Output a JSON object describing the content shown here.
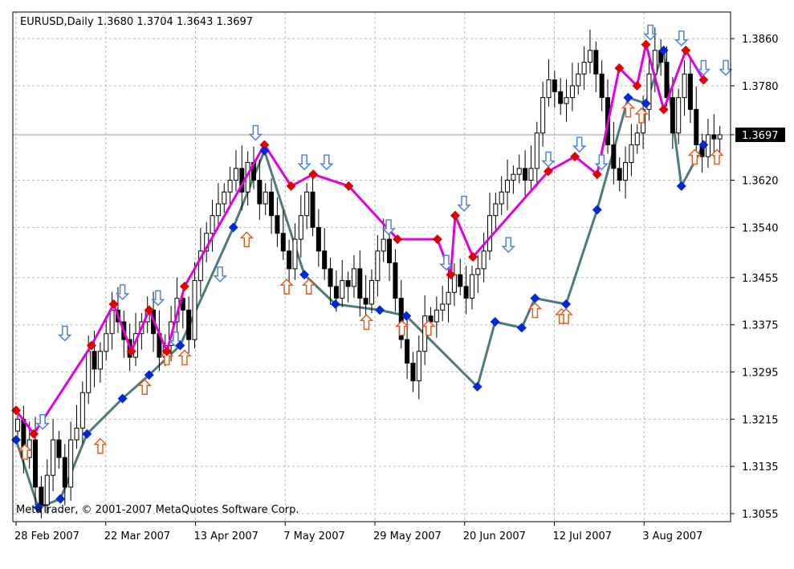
{
  "chart_data": {
    "type": "candlestick",
    "header": "EURUSD,Daily  1.3680 1.3704 1.3643 1.3697",
    "watermark": "MetaTrader, © 2001-2007 MetaQuotes Software Corp.",
    "current_price": "1.3697",
    "ylim": [
      1.3055,
      1.3905
    ],
    "grid": true,
    "y_ticks": [
      "1.3860",
      "1.3780",
      "1.3697",
      "1.3620",
      "1.3540",
      "1.3455",
      "1.3375",
      "1.3295",
      "1.3215",
      "1.3135",
      "1.3055"
    ],
    "y_tick_values": [
      1.386,
      1.378,
      1.3697,
      1.362,
      1.354,
      1.3455,
      1.3375,
      1.3295,
      1.3215,
      1.3135,
      1.3055
    ],
    "x_ticks": [
      "28 Feb 2007",
      "22 Mar 2007",
      "13 Apr 2007",
      "7 May 2007",
      "29 May 2007",
      "20 Jun 2007",
      "12 Jul 2007",
      "3 Aug 2007"
    ],
    "x_tick_bar_index": [
      0,
      16,
      32,
      48,
      64,
      80,
      96,
      112
    ],
    "bar_count": 120,
    "closes": [
      1.3215,
      1.315,
      1.318,
      1.31,
      1.307,
      1.312,
      1.318,
      1.315,
      1.31,
      1.318,
      1.32,
      1.326,
      1.333,
      1.33,
      1.333,
      1.336,
      1.34,
      1.338,
      1.335,
      1.332,
      1.336,
      1.338,
      1.34,
      1.336,
      1.332,
      1.334,
      1.338,
      1.342,
      1.34,
      1.335,
      1.345,
      1.35,
      1.353,
      1.356,
      1.358,
      1.36,
      1.362,
      1.364,
      1.36,
      1.365,
      1.362,
      1.358,
      1.36,
      1.356,
      1.353,
      1.35,
      1.347,
      1.352,
      1.356,
      1.36,
      1.354,
      1.35,
      1.347,
      1.344,
      1.342,
      1.345,
      1.344,
      1.347,
      1.342,
      1.341,
      1.345,
      1.35,
      1.352,
      1.348,
      1.342,
      1.335,
      1.331,
      1.328,
      1.333,
      1.339,
      1.338,
      1.34,
      1.341,
      1.343,
      1.346,
      1.344,
      1.342,
      1.346,
      1.347,
      1.35,
      1.356,
      1.358,
      1.36,
      1.362,
      1.363,
      1.364,
      1.362,
      1.364,
      1.37,
      1.376,
      1.379,
      1.377,
      1.375,
      1.376,
      1.378,
      1.38,
      1.382,
      1.384,
      1.38,
      1.376,
      1.368,
      1.364,
      1.362,
      1.365,
      1.368,
      1.37,
      1.374,
      1.38,
      1.384,
      1.382,
      1.376,
      1.37,
      1.376,
      1.38,
      1.374,
      1.368,
      1.366,
      1.3697,
      1.369,
      1.3697
    ],
    "zigzag_high": [
      [
        0,
        1.323
      ],
      [
        4,
        1.319
      ],
      [
        17,
        1.334
      ],
      [
        22,
        1.341
      ],
      [
        26,
        1.333
      ],
      [
        30,
        1.34
      ],
      [
        34,
        1.333
      ],
      [
        38,
        1.344
      ],
      [
        56,
        1.368
      ],
      [
        62,
        1.361
      ],
      [
        67,
        1.363
      ],
      [
        75,
        1.361
      ],
      [
        86,
        1.352
      ],
      [
        95,
        1.352
      ],
      [
        98,
        1.346
      ],
      [
        99,
        1.356
      ],
      [
        103,
        1.349
      ],
      [
        120,
        1.3635
      ],
      [
        126,
        1.366
      ],
      [
        131,
        1.363
      ],
      [
        136,
        1.381
      ],
      [
        140,
        1.378
      ],
      [
        142,
        1.385
      ],
      [
        146,
        1.374
      ],
      [
        151,
        1.384
      ],
      [
        155,
        1.379
      ]
    ],
    "zigzag_low": [
      [
        0,
        1.318
      ],
      [
        5,
        1.3065
      ],
      [
        10,
        1.308
      ],
      [
        16,
        1.319
      ],
      [
        24,
        1.325
      ],
      [
        30,
        1.329
      ],
      [
        37,
        1.334
      ],
      [
        49,
        1.354
      ],
      [
        56,
        1.367
      ],
      [
        65,
        1.346
      ],
      [
        72,
        1.341
      ],
      [
        82,
        1.34
      ],
      [
        88,
        1.339
      ],
      [
        104,
        1.327
      ],
      [
        108,
        1.338
      ],
      [
        114,
        1.337
      ],
      [
        117,
        1.342
      ],
      [
        124,
        1.341
      ],
      [
        131,
        1.357
      ],
      [
        138,
        1.376
      ],
      [
        142,
        1.375
      ],
      [
        146,
        1.384
      ],
      [
        150,
        1.361
      ],
      [
        155,
        1.368
      ]
    ],
    "up_arrows_bars": [
      2,
      19,
      29,
      34,
      38,
      52,
      61,
      66,
      79,
      87,
      93,
      117,
      123,
      124,
      138,
      141,
      153,
      158
    ],
    "down_arrows_bars": [
      6,
      11,
      24,
      32,
      36,
      46,
      54,
      65,
      70,
      84,
      97,
      101,
      111,
      120,
      127,
      132,
      143,
      150,
      155,
      160
    ],
    "colors": {
      "zigzag_high_line": "#e000e0",
      "zigzag_low_line": "#4f7a7a",
      "high_diamond": "#e00000",
      "low_diamond": "#0028d8",
      "up_arrow": "#e06020",
      "down_arrow": "#5080e0",
      "grid": "#b8b8b8",
      "candle": "#000000"
    }
  }
}
